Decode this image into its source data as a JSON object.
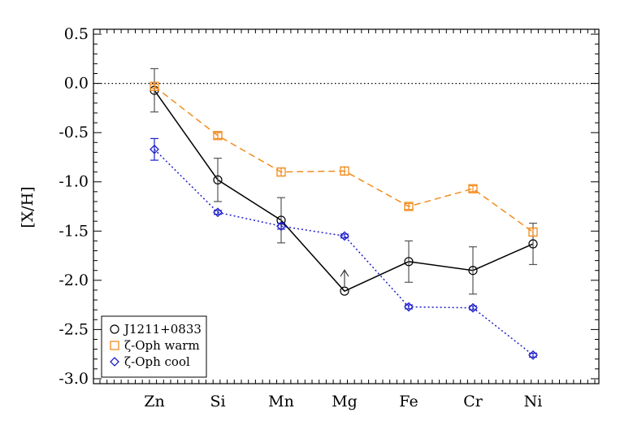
{
  "chart_data": {
    "type": "line",
    "title": "",
    "xlabel": "",
    "ylabel": "[X/H]",
    "categories": [
      "Zn",
      "Si",
      "Mn",
      "Mg",
      "Fe",
      "Cr",
      "Ni"
    ],
    "ylim": [
      -3.05,
      0.55
    ],
    "yticks": [
      "0.5",
      "0.0",
      "-0.5",
      "-1.0",
      "-1.5",
      "-2.0",
      "-2.5",
      "-3.0"
    ],
    "ytick_values": [
      0.5,
      0.0,
      -0.5,
      -1.0,
      -1.5,
      -2.0,
      -2.5,
      -3.0
    ],
    "grid": false,
    "reference_line": 0.0,
    "legend_position": "bottom-left",
    "series": [
      {
        "name": "J1211+0833",
        "color": "#000000",
        "marker": "circle",
        "linestyle": "solid",
        "values": [
          -0.07,
          -0.98,
          -1.39,
          -2.11,
          -1.81,
          -1.9,
          -1.63
        ],
        "errors": [
          0.22,
          0.22,
          0.23,
          null,
          0.21,
          0.24,
          0.21
        ],
        "lower_limit": [
          false,
          false,
          false,
          true,
          false,
          false,
          false
        ]
      },
      {
        "name": "ζ-Oph warm",
        "color": "#F28C1E",
        "marker": "square",
        "linestyle": "dashed",
        "values": [
          -0.03,
          -0.53,
          -0.9,
          -0.89,
          -1.25,
          -1.07,
          -1.51
        ],
        "errors": [
          0.02,
          0.03,
          0.04,
          0.04,
          0.03,
          0.03,
          0.04
        ],
        "lower_limit": [
          false,
          false,
          false,
          false,
          false,
          false,
          false
        ]
      },
      {
        "name": "ζ-Oph cool",
        "color": "#1E1ECC",
        "marker": "diamond",
        "linestyle": "dotted",
        "values": [
          -0.67,
          -1.31,
          -1.45,
          -1.55,
          -2.27,
          -2.28,
          -2.76
        ],
        "errors": [
          0.11,
          0.02,
          0.03,
          0.02,
          0.02,
          0.02,
          0.02
        ],
        "lower_limit": [
          false,
          false,
          false,
          false,
          false,
          false,
          false
        ]
      }
    ]
  }
}
